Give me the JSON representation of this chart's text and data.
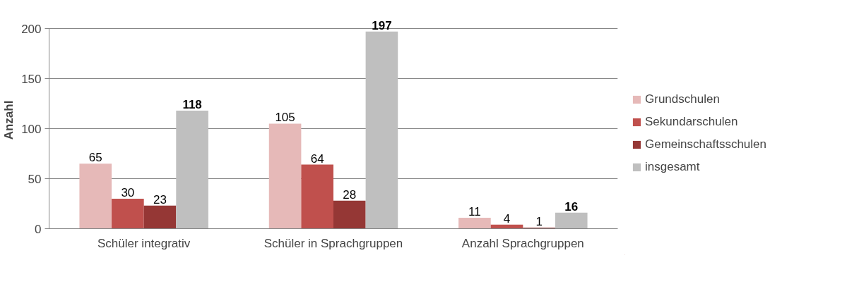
{
  "chart_data": {
    "type": "bar",
    "ylabel": "Anzahl",
    "categories": [
      "Schüler integrativ",
      "Schüler in Sprachgruppen",
      "Anzahl Sprachgruppen"
    ],
    "series": [
      {
        "name": "Grundschulen",
        "color": "#e6b9b8",
        "values": [
          65,
          105,
          11
        ]
      },
      {
        "name": "Sekundarschulen",
        "color": "#c0504d",
        "values": [
          30,
          64,
          4
        ]
      },
      {
        "name": "Gemeinschaftsschulen",
        "color": "#953735",
        "values": [
          23,
          28,
          1
        ]
      },
      {
        "name": "insgesamt",
        "color": "#bfbfbf",
        "values": [
          118,
          197,
          16
        ]
      }
    ],
    "ylim": [
      0,
      200
    ],
    "yticks": [
      0,
      50,
      100,
      150,
      200
    ],
    "grid": "y",
    "legend": "right",
    "data_labels": true
  }
}
